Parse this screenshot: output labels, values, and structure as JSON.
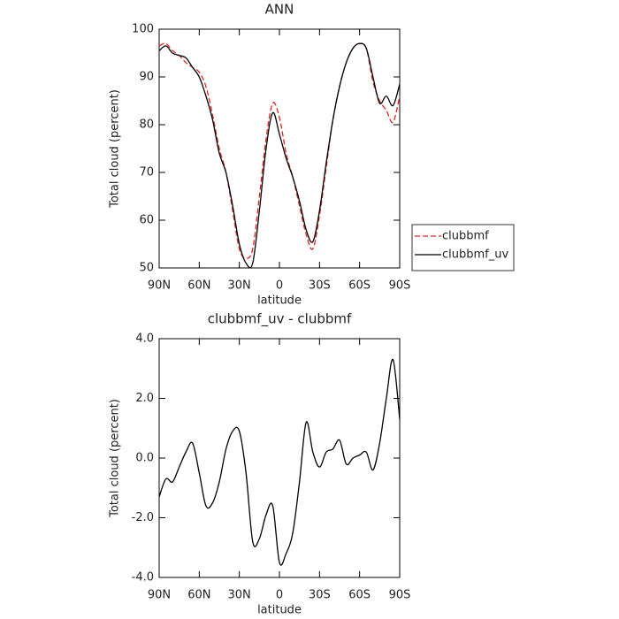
{
  "chart_data": [
    {
      "type": "line",
      "title": "ANN",
      "xlabel": "latitude",
      "ylabel": "Total cloud (percent)",
      "x": [
        90,
        85,
        80,
        75,
        70,
        65,
        60,
        55,
        50,
        45,
        40,
        35,
        30,
        25,
        20,
        15,
        10,
        5,
        0,
        -5,
        -10,
        -15,
        -20,
        -25,
        -30,
        -35,
        -40,
        -45,
        -50,
        -55,
        -60,
        -65,
        -70,
        -75,
        -80,
        -85,
        -90
      ],
      "xlim": [
        90,
        -90
      ],
      "xticks": [
        {
          "value": 90,
          "label": "90N"
        },
        {
          "value": 60,
          "label": "60N"
        },
        {
          "value": 30,
          "label": "30N"
        },
        {
          "value": 0,
          "label": "0"
        },
        {
          "value": -30,
          "label": "30S"
        },
        {
          "value": -60,
          "label": "60S"
        },
        {
          "value": -90,
          "label": "90S"
        }
      ],
      "ylim": [
        50,
        100
      ],
      "yticks": [
        50,
        60,
        70,
        80,
        90,
        100
      ],
      "legend": "right",
      "series": [
        {
          "name": "clubbmf",
          "color": "#e0241c",
          "dash": true,
          "values": [
            96.5,
            97,
            95.5,
            94.5,
            93,
            92,
            91,
            88,
            82,
            75,
            70,
            62,
            54,
            52,
            54,
            65,
            77,
            84.5,
            81.5,
            74,
            69,
            63,
            57,
            54,
            61,
            71,
            81,
            88,
            93,
            96,
            97,
            96,
            89,
            85,
            83,
            80.5,
            86
          ]
        },
        {
          "name": "clubbmf_uv",
          "color": "#000000",
          "dash": false,
          "values": [
            95.5,
            96.5,
            95,
            94.5,
            94,
            92,
            90,
            86,
            81,
            74,
            70,
            63,
            55,
            51,
            51,
            62,
            75,
            82.5,
            78,
            73,
            69,
            64,
            58,
            55.5,
            62,
            72,
            81,
            88,
            93,
            96,
            97,
            96,
            90,
            84.5,
            86,
            84,
            88.5
          ]
        }
      ]
    },
    {
      "type": "line",
      "title": "clubbmf_uv - clubbmf",
      "xlabel": "latitude",
      "ylabel": "Total cloud (percent)",
      "x": [
        90,
        85,
        80,
        75,
        70,
        65,
        60,
        55,
        50,
        45,
        40,
        35,
        30,
        25,
        20,
        15,
        10,
        5,
        0,
        -5,
        -10,
        -15,
        -20,
        -25,
        -30,
        -35,
        -40,
        -45,
        -50,
        -55,
        -60,
        -65,
        -70,
        -75,
        -80,
        -85,
        -90
      ],
      "xlim": [
        90,
        -90
      ],
      "xticks": [
        {
          "value": 90,
          "label": "90N"
        },
        {
          "value": 60,
          "label": "60N"
        },
        {
          "value": 30,
          "label": "30N"
        },
        {
          "value": 0,
          "label": "0"
        },
        {
          "value": -30,
          "label": "30S"
        },
        {
          "value": -60,
          "label": "60S"
        },
        {
          "value": -90,
          "label": "90S"
        }
      ],
      "ylim": [
        -4,
        4
      ],
      "yticks": [
        {
          "value": -4,
          "label": "-4.0"
        },
        {
          "value": -2,
          "label": "-2.0"
        },
        {
          "value": 0,
          "label": "0.0"
        },
        {
          "value": 2,
          "label": "2.0"
        },
        {
          "value": 4,
          "label": "4.0"
        }
      ],
      "series": [
        {
          "color": "#000000",
          "dash": false,
          "values": [
            -1.3,
            -0.7,
            -0.8,
            -0.3,
            0.2,
            0.5,
            -0.5,
            -1.6,
            -1.5,
            -0.8,
            0.3,
            0.9,
            0.9,
            -0.5,
            -2.8,
            -2.7,
            -1.9,
            -1.6,
            -3.5,
            -3.2,
            -2.5,
            -0.8,
            1.2,
            0.2,
            -0.3,
            0.2,
            0.3,
            0.6,
            -0.2,
            0.0,
            0.1,
            0.2,
            -0.4,
            0.5,
            2.0,
            3.3,
            1.3
          ]
        }
      ]
    }
  ]
}
